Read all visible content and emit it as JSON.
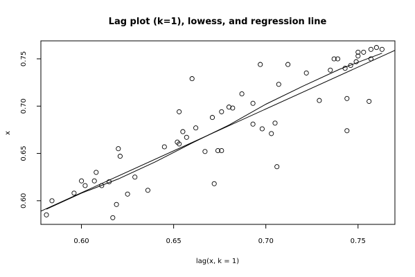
{
  "chart_data": {
    "type": "scatter",
    "title": "Lag plot (k=1), lowess, and regression line",
    "xlabel": "lag(x, k = 1)",
    "ylabel": "x",
    "xlim": [
      0.578,
      0.77
    ],
    "ylim": [
      0.575,
      0.769
    ],
    "xticks": [
      0.6,
      0.65,
      0.7,
      0.75
    ],
    "xtick_labels": [
      "0.60",
      "0.65",
      "0.70",
      "0.75"
    ],
    "yticks": [
      0.6,
      0.65,
      0.7,
      0.75
    ],
    "ytick_labels": [
      "0.60",
      "0.65",
      "0.70",
      "0.75"
    ],
    "points": [
      [
        0.581,
        0.585
      ],
      [
        0.584,
        0.6
      ],
      [
        0.596,
        0.608
      ],
      [
        0.6,
        0.621
      ],
      [
        0.602,
        0.616
      ],
      [
        0.607,
        0.621
      ],
      [
        0.608,
        0.63
      ],
      [
        0.611,
        0.616
      ],
      [
        0.615,
        0.62
      ],
      [
        0.617,
        0.582
      ],
      [
        0.619,
        0.596
      ],
      [
        0.62,
        0.655
      ],
      [
        0.621,
        0.647
      ],
      [
        0.625,
        0.607
      ],
      [
        0.629,
        0.625
      ],
      [
        0.636,
        0.611
      ],
      [
        0.645,
        0.657
      ],
      [
        0.652,
        0.662
      ],
      [
        0.653,
        0.66
      ],
      [
        0.653,
        0.694
      ],
      [
        0.655,
        0.673
      ],
      [
        0.657,
        0.667
      ],
      [
        0.66,
        0.729
      ],
      [
        0.662,
        0.677
      ],
      [
        0.667,
        0.652
      ],
      [
        0.671,
        0.688
      ],
      [
        0.672,
        0.618
      ],
      [
        0.674,
        0.653
      ],
      [
        0.676,
        0.653
      ],
      [
        0.676,
        0.694
      ],
      [
        0.68,
        0.699
      ],
      [
        0.682,
        0.698
      ],
      [
        0.687,
        0.713
      ],
      [
        0.693,
        0.703
      ],
      [
        0.693,
        0.681
      ],
      [
        0.697,
        0.744
      ],
      [
        0.698,
        0.676
      ],
      [
        0.703,
        0.671
      ],
      [
        0.705,
        0.682
      ],
      [
        0.706,
        0.636
      ],
      [
        0.707,
        0.723
      ],
      [
        0.712,
        0.744
      ],
      [
        0.722,
        0.735
      ],
      [
        0.729,
        0.706
      ],
      [
        0.735,
        0.738
      ],
      [
        0.737,
        0.75
      ],
      [
        0.739,
        0.75
      ],
      [
        0.743,
        0.74
      ],
      [
        0.744,
        0.708
      ],
      [
        0.744,
        0.674
      ],
      [
        0.746,
        0.743
      ],
      [
        0.749,
        0.747
      ],
      [
        0.75,
        0.757
      ],
      [
        0.75,
        0.753
      ],
      [
        0.753,
        0.757
      ],
      [
        0.756,
        0.705
      ],
      [
        0.757,
        0.76
      ],
      [
        0.757,
        0.75
      ],
      [
        0.76,
        0.762
      ],
      [
        0.763,
        0.76
      ]
    ],
    "regression_line": [
      [
        0.578,
        0.589
      ],
      [
        0.77,
        0.759
      ]
    ],
    "lowess_line": [
      [
        0.581,
        0.591
      ],
      [
        0.6,
        0.608
      ],
      [
        0.62,
        0.623
      ],
      [
        0.64,
        0.641
      ],
      [
        0.66,
        0.661
      ],
      [
        0.68,
        0.68
      ],
      [
        0.7,
        0.702
      ],
      [
        0.72,
        0.721
      ],
      [
        0.74,
        0.739
      ],
      [
        0.763,
        0.756
      ]
    ],
    "grid": false,
    "legend": "none"
  }
}
